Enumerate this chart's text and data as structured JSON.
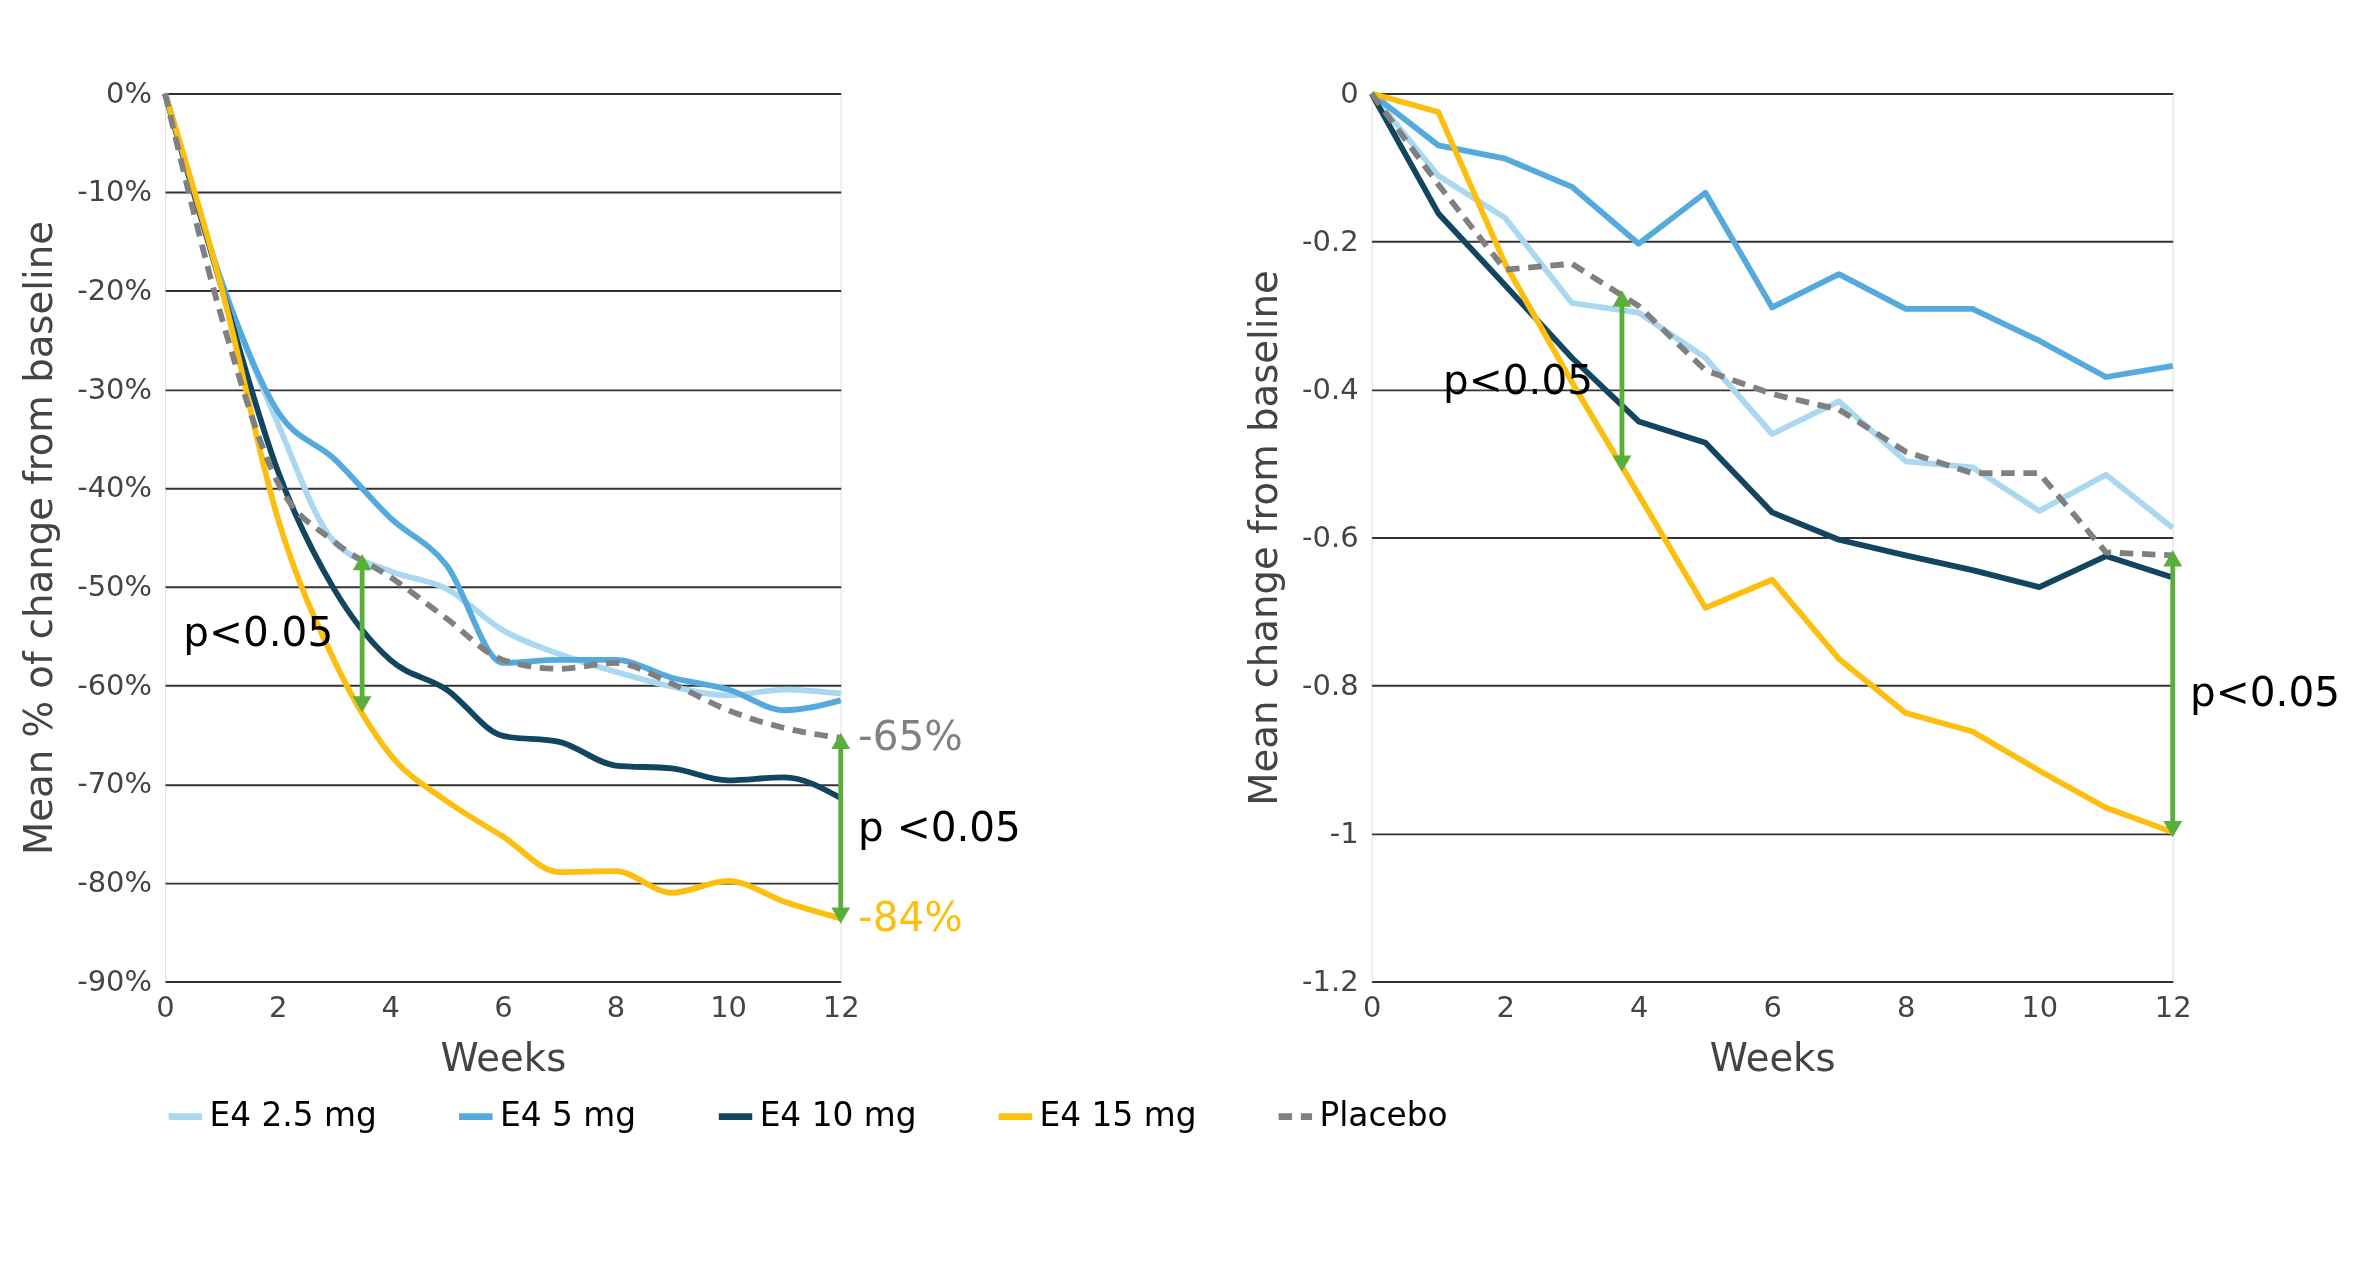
{
  "chart_data": [
    {
      "type": "line",
      "xlabel": "Weeks",
      "ylabel": "Mean % of change from baseline",
      "x": [
        0,
        1,
        2,
        3,
        4,
        5,
        6,
        7,
        8,
        9,
        10,
        11,
        12
      ],
      "xlim": [
        0,
        12
      ],
      "xticks": [
        0,
        2,
        4,
        6,
        8,
        10,
        12
      ],
      "ylim": [
        -90,
        0
      ],
      "yticks": [
        {
          "value": 0,
          "label": "0%"
        },
        {
          "value": -10,
          "label": "-10%"
        },
        {
          "value": -20,
          "label": "-20%"
        },
        {
          "value": -30,
          "label": "-30%"
        },
        {
          "value": -40,
          "label": "-40%"
        },
        {
          "value": -50,
          "label": "-50%"
        },
        {
          "value": -60,
          "label": "-60%"
        },
        {
          "value": -70,
          "label": "-70%"
        },
        {
          "value": -80,
          "label": "-80%"
        },
        {
          "value": -90,
          "label": "-90%"
        }
      ],
      "grid": "y",
      "legend": "bottom",
      "series": [
        {
          "name": "E4 2.5 mg",
          "color": "#a9d8f0",
          "values": [
            0,
            -19,
            -33.4,
            -45.4,
            -48.4,
            -50.2,
            -54.4,
            -56.8,
            -58.6,
            -60.1,
            -61,
            -60.4,
            -60.8
          ]
        },
        {
          "name": "E4 5 mg",
          "color": "#55aadd",
          "values": [
            0,
            -19,
            -32.2,
            -37,
            -43,
            -47.8,
            -57.7,
            -57.4,
            -57.4,
            -59.2,
            -60.4,
            -62.5,
            -61.5
          ]
        },
        {
          "name": "E4 10 mg",
          "color": "#124560",
          "values": [
            0,
            -19.6,
            -38.2,
            -50.2,
            -57.4,
            -60.4,
            -65.1,
            -65.7,
            -68.1,
            -68.4,
            -69.6,
            -69.3,
            -71.4
          ]
        },
        {
          "name": "E4 15 mg",
          "color": "#fdbf0f",
          "values": [
            0,
            -19.6,
            -43,
            -57.4,
            -67,
            -71.7,
            -75.3,
            -78.9,
            -78.8,
            -81,
            -79.8,
            -81.9,
            -83.6
          ]
        },
        {
          "name": "Placebo",
          "color": "#808080",
          "line_style": "dashed",
          "values": [
            0,
            -22.6,
            -39.4,
            -45.4,
            -49,
            -53.2,
            -57.4,
            -58.3,
            -57.7,
            -59.8,
            -62.5,
            -64.3,
            -65.3
          ]
        }
      ],
      "annotations": [
        {
          "text": "p<0.05",
          "x": 3.5,
          "y": -47.2
        },
        {
          "text": "p <0.05",
          "x": 12,
          "y": -65.3
        },
        {
          "text": "-65%",
          "x": 12,
          "y": -65.3
        },
        {
          "text": "-84%",
          "x": 12,
          "y": -83.6
        }
      ]
    },
    {
      "type": "line",
      "xlabel": "Weeks",
      "ylabel": "Mean change from baseline",
      "x": [
        0,
        1,
        2,
        3,
        4,
        5,
        6,
        7,
        8,
        9,
        10,
        11,
        12
      ],
      "xlim": [
        0,
        12
      ],
      "xticks": [
        0,
        2,
        4,
        6,
        8,
        10,
        12
      ],
      "ylim": [
        -1.2,
        0
      ],
      "yticks": [
        0,
        -0.2,
        -0.4,
        -0.6,
        -0.8,
        -1,
        -1.2
      ],
      "grid": "y",
      "legend": "bottom",
      "series": [
        {
          "name": "E4 2.5 mg",
          "color": "#a9d8f0",
          "values": [
            0,
            -0.111,
            -0.168,
            -0.283,
            -0.296,
            -0.357,
            -0.46,
            -0.416,
            -0.497,
            -0.505,
            -0.564,
            -0.515,
            -0.587
          ]
        },
        {
          "name": "E4 5 mg",
          "color": "#55aadd",
          "values": [
            0,
            -0.07,
            -0.088,
            -0.126,
            -0.203,
            -0.134,
            -0.289,
            -0.244,
            -0.291,
            -0.291,
            -0.334,
            -0.383,
            -0.368
          ]
        },
        {
          "name": "E4 10 mg",
          "color": "#124560",
          "values": [
            0,
            -0.162,
            -0.259,
            -0.357,
            -0.443,
            -0.472,
            -0.566,
            -0.603,
            -0.624,
            -0.644,
            -0.667,
            -0.625,
            -0.654
          ]
        },
        {
          "name": "E4 15 mg",
          "color": "#fdbf0f",
          "values": [
            0,
            -0.025,
            -0.23,
            -0.39,
            -0.542,
            -0.695,
            -0.657,
            -0.764,
            -0.837,
            -0.862,
            -0.915,
            -0.965,
            -0.998
          ]
        },
        {
          "name": "Placebo",
          "color": "#808080",
          "line_style": "dashed",
          "values": [
            0,
            -0.123,
            -0.238,
            -0.23,
            -0.287,
            -0.374,
            -0.406,
            -0.427,
            -0.484,
            -0.513,
            -0.513,
            -0.62,
            -0.624
          ]
        }
      ],
      "annotations": [
        {
          "text": "p<0.05",
          "x": 3.75,
          "y": -0.273
        },
        {
          "text": "p<0.05",
          "x": 12,
          "y": -0.624
        }
      ]
    }
  ]
}
